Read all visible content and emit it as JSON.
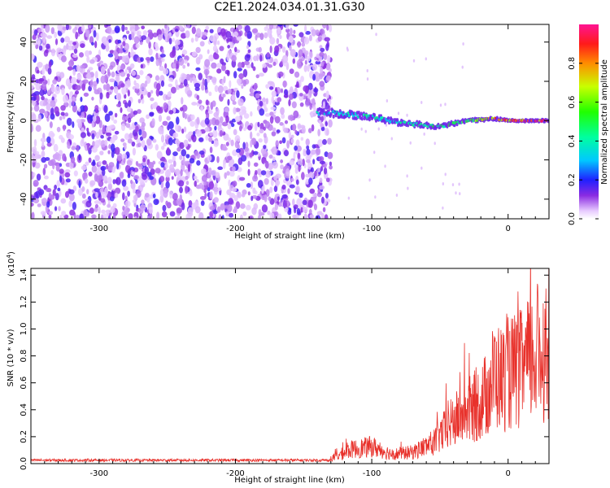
{
  "title": "C2E1.2024.034.01.31.G30",
  "chart_data": [
    {
      "type": "heatmap",
      "xlabel": "Height of straight line (km)",
      "ylabel": "Frequency (Hz)",
      "xlim": [
        -350,
        30
      ],
      "ylim": [
        -50,
        49
      ],
      "xticks": [
        -300,
        -200,
        -100,
        0
      ],
      "yticks": [
        -40,
        -20,
        0,
        20,
        40
      ],
      "colorbar": {
        "label": "Normalized spectral amplitude",
        "ticks": [
          "0.0",
          "0.2",
          "0.4",
          "0.6",
          "0.8"
        ],
        "range": [
          0,
          1
        ]
      },
      "ridge": {
        "description_values": [
          {
            "x": -130,
            "y": 4,
            "amp": 0.35
          },
          {
            "x": -100,
            "y": 2,
            "amp": 0.4
          },
          {
            "x": -80,
            "y": -1,
            "amp": 0.4
          },
          {
            "x": -50,
            "y": -3,
            "amp": 0.45
          },
          {
            "x": -30,
            "y": 0,
            "amp": 0.55
          },
          {
            "x": -10,
            "y": 1,
            "amp": 0.75
          },
          {
            "x": 0,
            "y": 0,
            "amp": 0.85
          },
          {
            "x": 25,
            "y": 0,
            "amp": 0.95
          }
        ]
      }
    },
    {
      "type": "line",
      "xlabel": "Height of straight line (km)",
      "ylabel": "SNR (10 * v/v)",
      "yscale_label": "(x10",
      "yscale_exp": "4",
      "yscale_close": ")",
      "xlim": [
        -350,
        30
      ],
      "ylim": [
        0,
        1.45
      ],
      "xticks": [
        -300,
        -200,
        -100,
        0
      ],
      "yticks": [
        "0.0",
        "0.2",
        "0.4",
        "0.6",
        "0.8",
        "1.0",
        "1.2",
        "1.4"
      ],
      "color": "#e8312b",
      "series": [
        {
          "envelope": [
            {
              "x": -350,
              "y": 0.02
            },
            {
              "x": -200,
              "y": 0.02
            },
            {
              "x": -150,
              "y": 0.03
            },
            {
              "x": -130,
              "y": 0.05
            },
            {
              "x": -115,
              "y": 0.15
            },
            {
              "x": -100,
              "y": 0.18
            },
            {
              "x": -85,
              "y": 0.1
            },
            {
              "x": -70,
              "y": 0.12
            },
            {
              "x": -55,
              "y": 0.22
            },
            {
              "x": -40,
              "y": 0.45
            },
            {
              "x": -30,
              "y": 0.55
            },
            {
              "x": -20,
              "y": 0.65
            },
            {
              "x": -15,
              "y": 0.75
            },
            {
              "x": -10,
              "y": 0.95
            },
            {
              "x": -5,
              "y": 0.9
            },
            {
              "x": 0,
              "y": 0.95
            },
            {
              "x": 10,
              "y": 1.0
            },
            {
              "x": 20,
              "y": 1.15
            },
            {
              "x": 30,
              "y": 1.22
            }
          ]
        }
      ]
    }
  ]
}
